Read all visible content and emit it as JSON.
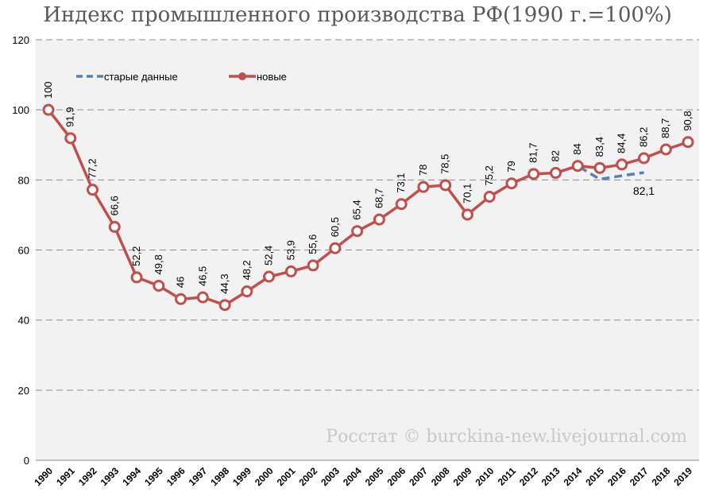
{
  "chart_data": {
    "type": "line",
    "title": "Индекс промышленного производства РФ(1990 г.=100%)",
    "xlabel": "",
    "ylabel": "",
    "ylim": [
      0,
      120
    ],
    "yticks": [
      0,
      20,
      40,
      60,
      80,
      100,
      120
    ],
    "grid": "horizontal dashed",
    "legend_placement": "top-left",
    "watermark": "Росстат © burckina-new.livejournal.com",
    "x": [
      1990,
      1991,
      1992,
      1993,
      1994,
      1995,
      1996,
      1997,
      1998,
      1999,
      2000,
      2001,
      2002,
      2003,
      2004,
      2005,
      2006,
      2007,
      2008,
      2009,
      2010,
      2011,
      2012,
      2013,
      2014,
      2015,
      2016,
      2017,
      2018,
      2019
    ],
    "series": [
      {
        "name": "новые",
        "color": "#c0504d",
        "style": "solid-markers",
        "x": [
          1990,
          1991,
          1992,
          1993,
          1994,
          1995,
          1996,
          1997,
          1998,
          1999,
          2000,
          2001,
          2002,
          2003,
          2004,
          2005,
          2006,
          2007,
          2008,
          2009,
          2010,
          2011,
          2012,
          2013,
          2014,
          2015,
          2016,
          2017,
          2018,
          2019
        ],
        "values": [
          100,
          91.9,
          77.2,
          66.6,
          52.2,
          49.8,
          46,
          46.5,
          44.3,
          48.2,
          52.4,
          53.9,
          55.6,
          60.5,
          65.4,
          68.7,
          73.1,
          78,
          78.5,
          70.1,
          75.2,
          79,
          81.7,
          82,
          84,
          83.4,
          84.4,
          86.2,
          88.7,
          90.8
        ],
        "labels": [
          "100",
          "91,9",
          "77,2",
          "66,6",
          "52,2",
          "49,8",
          "46",
          "46,5",
          "44,3",
          "48,2",
          "52,4",
          "53,9",
          "55,6",
          "60,5",
          "65,4",
          "68,7",
          "73,1",
          "78",
          "78,5",
          "70,1",
          "75,2",
          "79",
          "81,7",
          "82",
          "84",
          "83,4",
          "84,4",
          "86,2",
          "88,7",
          "90,8"
        ]
      },
      {
        "name": "старые данные",
        "color": "#4f81bd",
        "style": "dashed",
        "x": [
          2013,
          2014,
          2015,
          2016,
          2017
        ],
        "values": [
          82,
          84,
          80.2,
          81.2,
          82.1
        ],
        "end_label": "82,1"
      }
    ]
  }
}
